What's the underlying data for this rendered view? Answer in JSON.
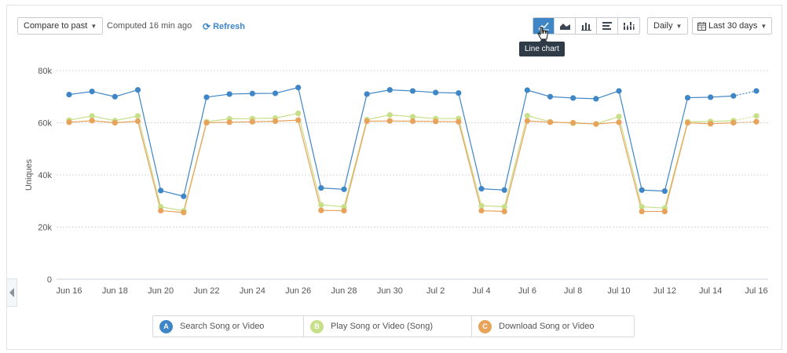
{
  "toolbar": {
    "compare_label": "Compare to past",
    "computed_text": "Computed 16 min ago",
    "refresh_label": "Refresh",
    "interval_label": "Daily",
    "range_label": "Last 30 days",
    "tooltip": "Line chart",
    "chart_types": [
      "line-chart-icon",
      "area-chart-icon",
      "bar-chart-icon",
      "horizontal-bar-icon",
      "stacked-bar-icon"
    ],
    "active_chart_type": "line-chart-icon"
  },
  "colors": {
    "series_a": "#3f86c6",
    "series_b": "#c8df8a",
    "series_c": "#e8a35b",
    "active_button": "#3f86c6"
  },
  "legend": [
    {
      "badge": "A",
      "label": "Search Song or Video",
      "color": "#3f86c6"
    },
    {
      "badge": "B",
      "label": "Play Song or Video (Song)",
      "color": "#c8df8a"
    },
    {
      "badge": "C",
      "label": "Download Song or Video",
      "color": "#e8a35b"
    }
  ],
  "chart_data": {
    "type": "line",
    "ylabel": "Uniques",
    "ylim": [
      0,
      80000
    ],
    "yticks": [
      0,
      20000,
      40000,
      60000,
      80000
    ],
    "ytick_labels": [
      "0",
      "20k",
      "40k",
      "60k",
      "80k"
    ],
    "grid": true,
    "x": [
      "Jun 16",
      "Jun 17",
      "Jun 18",
      "Jun 19",
      "Jun 20",
      "Jun 21",
      "Jun 22",
      "Jun 23",
      "Jun 24",
      "Jun 25",
      "Jun 26",
      "Jun 27",
      "Jun 28",
      "Jun 29",
      "Jun 30",
      "Jul 1",
      "Jul 2",
      "Jul 3",
      "Jul 4",
      "Jul 5",
      "Jul 6",
      "Jul 7",
      "Jul 8",
      "Jul 9",
      "Jul 10",
      "Jul 11",
      "Jul 12",
      "Jul 13",
      "Jul 14",
      "Jul 15",
      "Jul 16"
    ],
    "xtick_labels": [
      "Jun 16",
      "Jun 18",
      "Jun 20",
      "Jun 22",
      "Jun 24",
      "Jun 26",
      "Jun 28",
      "Jun 30",
      "Jul 2",
      "Jul 4",
      "Jul 6",
      "Jul 8",
      "Jul 10",
      "Jul 12",
      "Jul 14",
      "Jul 16"
    ],
    "incomplete_last_point": true,
    "series": [
      {
        "name": "Search Song or Video",
        "values": [
          70800,
          72000,
          70000,
          72600,
          34000,
          31800,
          69800,
          71000,
          71200,
          71300,
          73500,
          35000,
          34500,
          71000,
          72600,
          72200,
          71600,
          71400,
          34700,
          34200,
          72500,
          70000,
          69500,
          69200,
          72200,
          34200,
          33800,
          69600,
          69800,
          70300,
          72200
        ]
      },
      {
        "name": "Play Song or Video (Song)",
        "values": [
          61000,
          62600,
          60800,
          62600,
          27800,
          26200,
          60400,
          61500,
          61600,
          61800,
          63600,
          28500,
          27800,
          61200,
          63000,
          62300,
          61600,
          61600,
          28200,
          27800,
          62700,
          60400,
          59800,
          59600,
          62400,
          27800,
          27300,
          60400,
          60500,
          60800,
          62600
        ]
      },
      {
        "name": "Download Song or Video",
        "values": [
          60200,
          60800,
          60000,
          60600,
          26300,
          25600,
          60000,
          60200,
          60400,
          60600,
          61000,
          26400,
          26300,
          60600,
          60700,
          60600,
          60500,
          60400,
          26300,
          26000,
          60700,
          60200,
          60000,
          59500,
          60200,
          26000,
          26000,
          60000,
          59600,
          60000,
          60400
        ]
      }
    ]
  }
}
